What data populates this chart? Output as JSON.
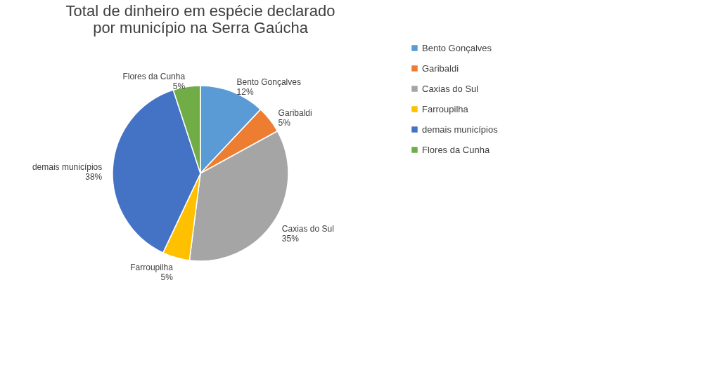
{
  "chart_data": {
    "type": "pie",
    "title": [
      "Total de dinheiro em espécie declarado",
      "por município na Serra Gaúcha"
    ],
    "categories": [
      "Bento Gonçalves",
      "Garibaldi",
      "Caxias do Sul",
      "Farroupilha",
      "demais municípios",
      "Flores da Cunha"
    ],
    "values": [
      12,
      5,
      35,
      5,
      38,
      5
    ],
    "value_labels": [
      "12%",
      "5%",
      "35%",
      "5%",
      "38%",
      "5%"
    ],
    "colors": [
      "#5b9bd5",
      "#ed7d31",
      "#a5a5a5",
      "#ffc000",
      "#4472c4",
      "#70ad47"
    ],
    "legend": "right"
  }
}
